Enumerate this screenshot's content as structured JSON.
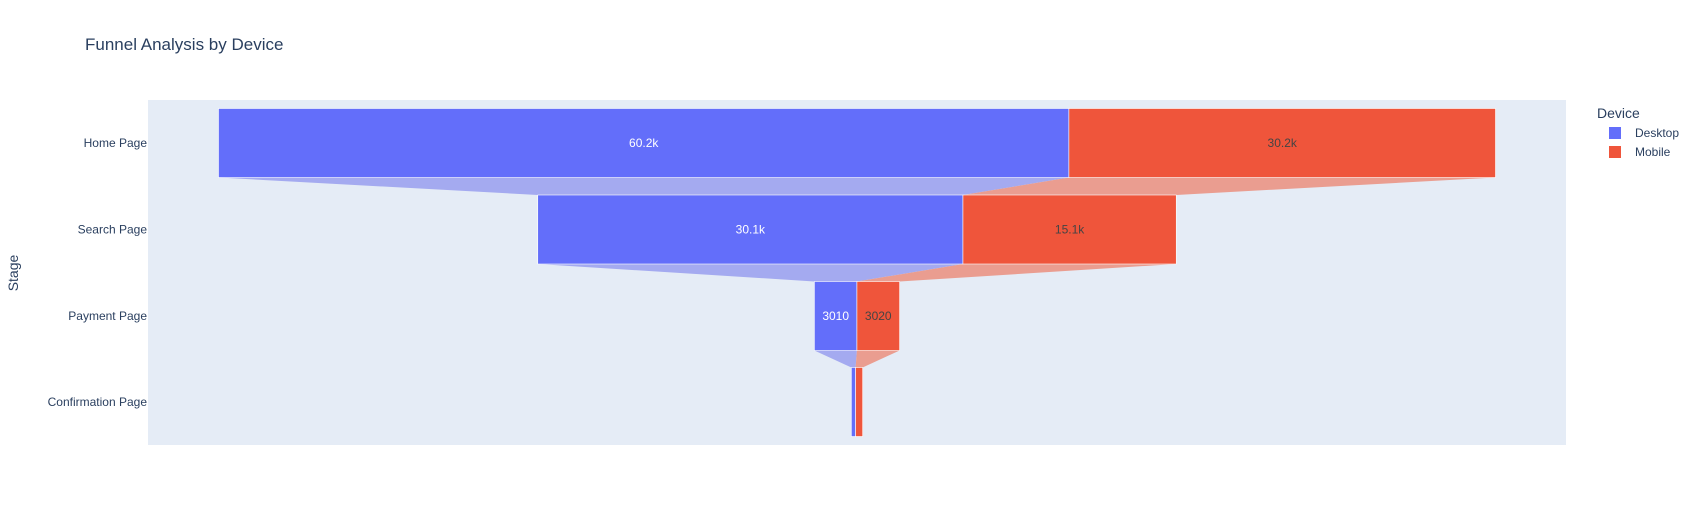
{
  "chart_data": {
    "type": "funnel",
    "title": "Funnel Analysis by Device",
    "ylabel": "Stage",
    "xlabel": "",
    "categories": [
      "Home Page",
      "Search Page",
      "Payment Page",
      "Confirmation Page"
    ],
    "series": [
      {
        "name": "Desktop",
        "color": "#636efa",
        "values": [
          60200,
          30100,
          3010,
          300
        ],
        "labels": [
          "60.2k",
          "30.1k",
          "3010",
          ""
        ]
      },
      {
        "name": "Mobile",
        "color": "#ef553b",
        "values": [
          30200,
          15100,
          3020,
          500
        ],
        "labels": [
          "30.2k",
          "15.1k",
          "3020",
          ""
        ]
      }
    ],
    "legend": {
      "title": "Device",
      "position": "top-right"
    },
    "grid": false,
    "background": "#e5ecf6"
  }
}
